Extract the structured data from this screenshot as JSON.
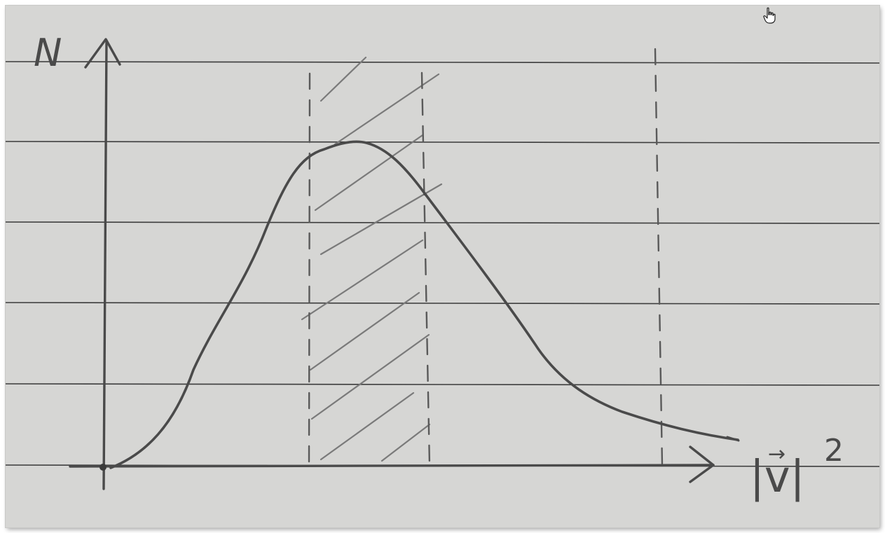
{
  "labels": {
    "y_axis": "N",
    "x_axis_main": "|v|",
    "x_axis_vector_arrow": "→",
    "x_axis_exponent": "2"
  },
  "icons": {
    "cursor": "hand-pointer-icon"
  },
  "colors": {
    "paper": "#d6d6d4",
    "pencil": "#4a4a4a",
    "ruled_line": "#3c3c3c",
    "hatch": "#7a7a7a"
  }
}
